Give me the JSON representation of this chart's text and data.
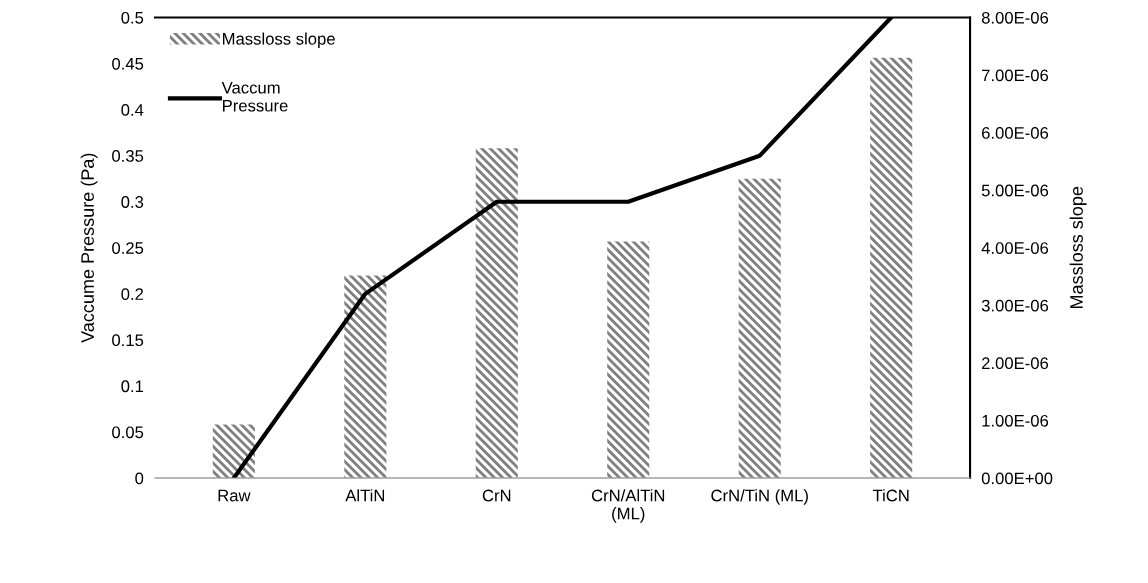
{
  "chart_data": {
    "type": "bar",
    "ylabel": "Vaccume Pressure (Pa)",
    "y2label": "Massloss slope",
    "categories": [
      "Raw",
      "AlTiN",
      "CrN",
      "CrN/AlTiN\n(ML)",
      "CrN/TiN (ML)",
      "TiCN"
    ],
    "series": [
      {
        "name": "Massloss slope",
        "axis": "y2",
        "color": "#7f7f7f",
        "values": [
          9.3e-07,
          3.52e-06,
          5.73e-06,
          4.11e-06,
          5.2e-06,
          7.3e-06
        ]
      },
      {
        "name": "Vaccum\nPressure",
        "type": "line",
        "color": "#000000",
        "values": [
          0,
          0.2,
          0.3,
          0.3,
          0.35,
          0.5
        ]
      }
    ],
    "ylim": [
      0,
      0.5
    ],
    "yticks": [
      0,
      0.05,
      0.1,
      0.15,
      0.2,
      0.25,
      0.3,
      0.35,
      0.4,
      0.45,
      0.5
    ],
    "y2lim": [
      0,
      8e-06
    ],
    "y2ticks": [
      {
        "value": 0,
        "label": "0.00E+00"
      },
      {
        "value": 1e-06,
        "label": "1.00E-06"
      },
      {
        "value": 2e-06,
        "label": "2.00E-06"
      },
      {
        "value": 3e-06,
        "label": "3.00E-06"
      },
      {
        "value": 4e-06,
        "label": "4.00E-06"
      },
      {
        "value": 5e-06,
        "label": "5.00E-06"
      },
      {
        "value": 6e-06,
        "label": "6.00E-06"
      },
      {
        "value": 7e-06,
        "label": "7.00E-06"
      },
      {
        "value": 8e-06,
        "label": "8.00E-06"
      }
    ],
    "legend": "top left",
    "grid": false
  }
}
